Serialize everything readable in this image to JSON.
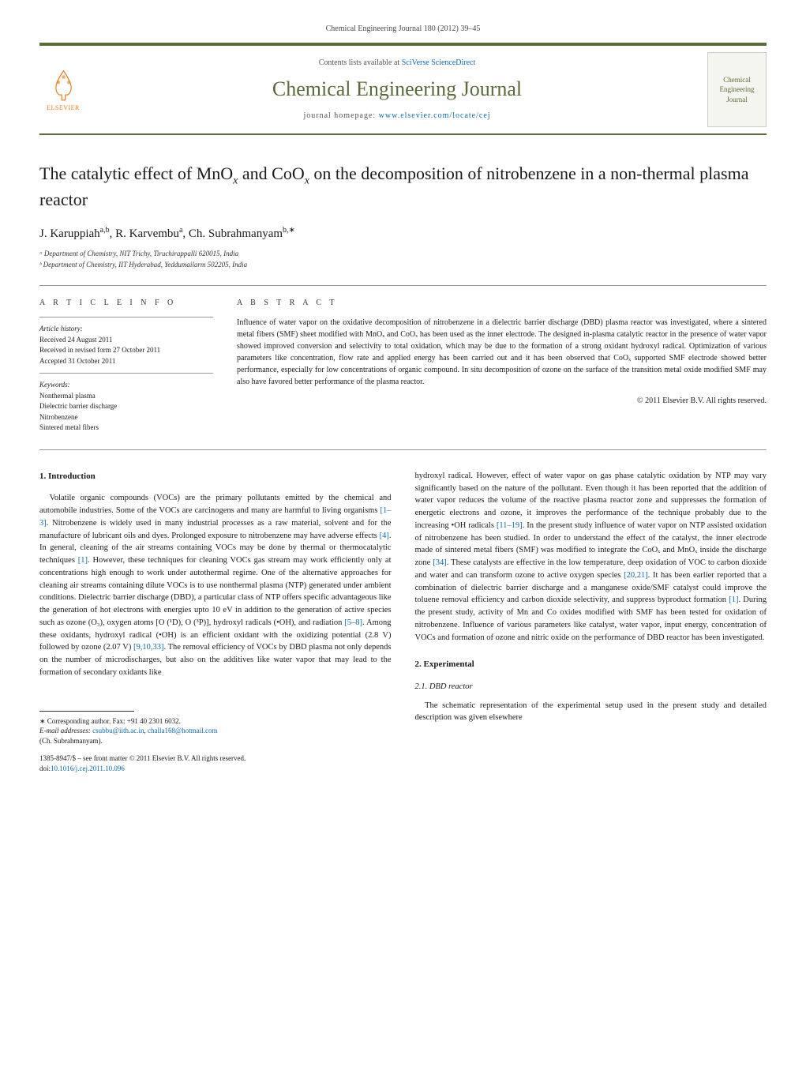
{
  "header": {
    "citation": "Chemical Engineering Journal 180 (2012) 39–45",
    "contents_prefix": "Contents lists available at ",
    "contents_link": "SciVerse ScienceDirect",
    "journal_title": "Chemical Engineering Journal",
    "homepage_prefix": "journal homepage: ",
    "homepage_link": "www.elsevier.com/locate/cej",
    "elsevier_label": "ELSEVIER",
    "cover_text": "Chemical Engineering Journal"
  },
  "article": {
    "title_html": "The catalytic effect of MnO<sub>x</sub> and CoO<sub>x</sub> on the decomposition of nitrobenzene in a non-thermal plasma reactor",
    "authors_html": "J. Karuppiah<sup>a,b</sup>, R. Karvembu<sup>a</sup>, Ch. Subrahmanyam<sup>b,∗</sup>",
    "affiliations": {
      "a": "ᵃ Department of Chemistry, NIT Trichy, Tiruchirappalli 620015, India",
      "b": "ᵇ Department of Chemistry, IIT Hyderabad, Yeddumailarm 502205, India"
    }
  },
  "info": {
    "heading": "A R T I C L E   I N F O",
    "history_label": "Article history:",
    "received": "Received 24 August 2011",
    "revised": "Received in revised form 27 October 2011",
    "accepted": "Accepted 31 October 2011",
    "keywords_label": "Keywords:",
    "keywords": [
      "Nonthermal plasma",
      "Dielectric barrier discharge",
      "Nitrobenzene",
      "Sintered metal fibers"
    ]
  },
  "abstract": {
    "heading": "A B S T R A C T",
    "text": "Influence of water vapor on the oxidative decomposition of nitrobenzene in a dielectric barrier discharge (DBD) plasma reactor was investigated, where a sintered metal fibers (SMF) sheet modified with MnOₓ and CoOₓ has been used as the inner electrode. The designed in-plasma catalytic reactor in the presence of water vapor showed improved conversion and selectivity to total oxidation, which may be due to the formation of a strong oxidant hydroxyl radical. Optimization of various parameters like concentration, flow rate and applied energy has been carried out and it has been observed that CoOₓ supported SMF electrode showed better performance, especially for low concentrations of organic compound. In situ decomposition of ozone on the surface of the transition metal oxide modified SMF may also have favored better performance of the plasma reactor.",
    "copyright": "© 2011 Elsevier B.V. All rights reserved."
  },
  "body": {
    "intro_heading": "1. Introduction",
    "intro_p1_html": "Volatile organic compounds (VOCs) are the primary pollutants emitted by the chemical and automobile industries. Some of the VOCs are carcinogens and many are harmful to living organisms <span class='ref-link'>[1–3]</span>. Nitrobenzene is widely used in many industrial processes as a raw material, solvent and for the manufacture of lubricant oils and dyes. Prolonged exposure to nitrobenzene may have adverse effects <span class='ref-link'>[4]</span>. In general, cleaning of the air streams containing VOCs may be done by thermal or thermocatalytic techniques <span class='ref-link'>[1]</span>. However, these techniques for cleaning VOCs gas stream may work efficiently only at concentrations high enough to work under autothermal regime. One of the alternative approaches for cleaning air streams containing dilute VOCs is to use nonthermal plasma (NTP) generated under ambient conditions. Dielectric barrier discharge (DBD), a particular class of NTP offers specific advantageous like the generation of hot electrons with energies upto 10 eV in addition to the generation of active species such as ozone (O₃), oxygen atoms [O (¹D), O (³P)], hydroxyl radicals (•OH), and radiation <span class='ref-link'>[5–8]</span>. Among these oxidants, hydroxyl radical (•OH) is an efficient oxidant with the oxidizing potential (2.8 V) followed by ozone (2.07 V) <span class='ref-link'>[9,10,33]</span>. The removal efficiency of VOCs by DBD plasma not only depends on the number of microdischarges, but also on the additives like water vapor that may lead to the formation of secondary oxidants like",
    "intro_p2_html": "hydroxyl radical. However, effect of water vapor on gas phase catalytic oxidation by NTP may vary significantly based on the nature of the pollutant. Even though it has been reported that the addition of water vapor reduces the volume of the reactive plasma reactor zone and suppresses the formation of energetic electrons and ozone, it improves the performance of the technique probably due to the increasing •OH radicals <span class='ref-link'>[11–19]</span>. In the present study influence of water vapor on NTP assisted oxidation of nitrobenzene has been studied. In order to understand the effect of the catalyst, the inner electrode made of sintered metal fibers (SMF) was modified to integrate the CoOₓ and MnOₓ inside the discharge zone <span class='ref-link'>[34]</span>. These catalysts are effective in the low temperature, deep oxidation of VOC to carbon dioxide and water and can transform ozone to active oxygen species <span class='ref-link'>[20,21]</span>. It has been earlier reported that a combination of dielectric barrier discharge and a manganese oxide/SMF catalyst could improve the toluene removal efficiency and carbon dioxide selectivity, and suppress byproduct formation <span class='ref-link'>[1]</span>. During the present study, activity of Mn and Co oxides modified with SMF has been tested for oxidation of nitrobenzene. Influence of various parameters like catalyst, water vapor, input energy, concentration of VOCs and formation of ozone and nitric oxide on the performance of DBD reactor has been investigated.",
    "exp_heading": "2. Experimental",
    "exp_sub_heading": "2.1. DBD reactor",
    "exp_p1": "The schematic representation of the experimental setup used in the present study and detailed description was given elsewhere"
  },
  "footer": {
    "corresponding": "∗ Corresponding author. Fax: +91 40 2301 6032.",
    "email_label": "E-mail addresses: ",
    "email1": "csubbu@iith.ac.in",
    "email2": "challa168@hotmail.com",
    "author_name": "(Ch. Subrahmanyam).",
    "issn": "1385-8947/$ – see front matter © 2011 Elsevier B.V. All rights reserved.",
    "doi_label": "doi:",
    "doi": "10.1016/j.cej.2011.10.096"
  },
  "colors": {
    "accent_green": "#5a6b3a",
    "link_blue": "#1067b3",
    "elsevier_orange": "#e67817",
    "text": "#1a1a1a",
    "background": "#ffffff"
  }
}
